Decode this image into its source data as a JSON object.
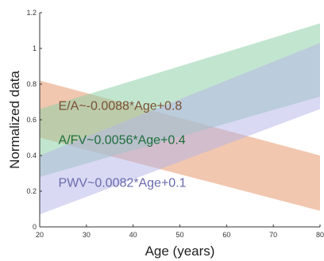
{
  "chart_data": {
    "type": "area",
    "xlabel": "Age (years)",
    "ylabel": "Normalized data",
    "xlim": [
      20,
      80
    ],
    "ylim": [
      0,
      1.2
    ],
    "xticks": [
      20,
      30,
      40,
      50,
      60,
      70,
      80
    ],
    "yticks": [
      0,
      0.2,
      0.4,
      0.6,
      0.8,
      1,
      1.2
    ],
    "xtick_labels": [
      "20",
      "30",
      "40",
      "50",
      "60",
      "70",
      "80"
    ],
    "ytick_labels": [
      "0",
      "0.2",
      "0.4",
      "0.6",
      "0.8",
      "1",
      "1.2"
    ],
    "grid": false,
    "series": [
      {
        "color": "#e8a27a",
        "opacity": 0.6,
        "x": [
          20,
          80
        ],
        "lower": [
          0.5,
          0.09
        ],
        "upper": [
          0.82,
          0.4
        ]
      },
      {
        "color": "#8fd0a8",
        "opacity": 0.55,
        "x": [
          20,
          80
        ],
        "lower": [
          0.28,
          0.73
        ],
        "upper": [
          0.66,
          1.14
        ]
      },
      {
        "color": "#b4b4ea",
        "opacity": 0.5,
        "x": [
          20,
          80
        ],
        "lower": [
          0.07,
          0.66
        ],
        "upper": [
          0.4,
          1.03
        ]
      }
    ],
    "annotations": [
      {
        "text": "E/A~-0.0088*Age+0.8",
        "color": "#7a5035",
        "x": 24,
        "y": 0.655
      },
      {
        "text": "A/FV~0.0056*Age+0.4",
        "color": "#1e6e3c",
        "x": 24,
        "y": 0.465
      },
      {
        "text": "PWV~0.0082*Age+0.1",
        "color": "#6a6aac",
        "x": 24,
        "y": 0.225
      }
    ]
  }
}
